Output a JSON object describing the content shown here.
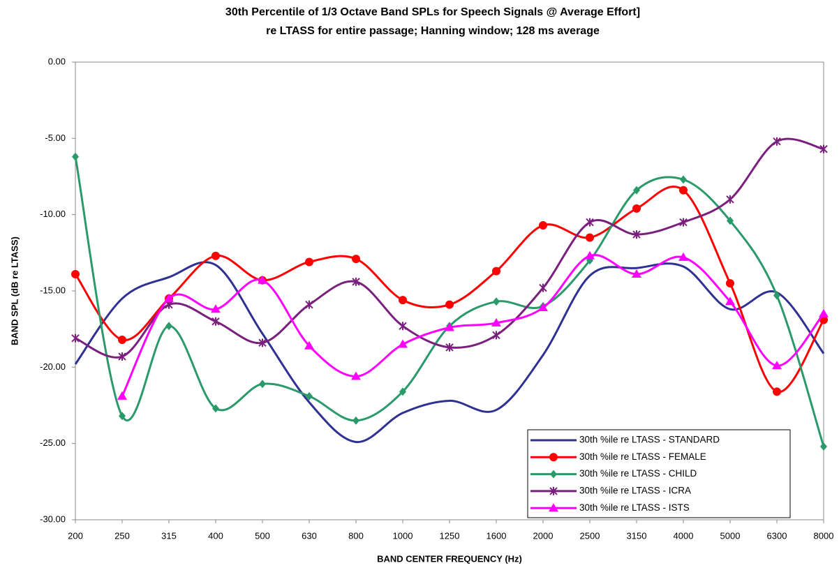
{
  "chart_data": {
    "type": "line",
    "title": "30th Percentile of 1/3 Octave Band SPLs for Speech Signals @ Average Effort]",
    "subtitle": "re LTASS for entire passage; Hanning window; 128 ms average",
    "x_label": "BAND CENTER FREQUENCY (Hz)",
    "y_label": "BAND SPL (dB re LTASS)",
    "categories": [
      "200",
      "250",
      "315",
      "400",
      "500",
      "630",
      "800",
      "1000",
      "1250",
      "1600",
      "2000",
      "2500",
      "3150",
      "4000",
      "5000",
      "6300",
      "8000"
    ],
    "ylim": [
      -30,
      0
    ],
    "yticks": [
      {
        "value": -30,
        "label": "-30.00"
      },
      {
        "value": -25,
        "label": "-25.00"
      },
      {
        "value": -20,
        "label": "-20.00"
      },
      {
        "value": -15,
        "label": "-15.00"
      },
      {
        "value": -10,
        "label": "-10.00"
      },
      {
        "value": -5,
        "label": "-5.00"
      },
      {
        "value": 0,
        "label": "0.00"
      }
    ],
    "grid": false,
    "smooth": true,
    "legend": "lower right",
    "series": [
      {
        "name": "30th %ile re LTASS - STANDARD",
        "color": "#2e3192",
        "marker": "none",
        "values": [
          -19.8,
          -15.5,
          -14.1,
          -13.3,
          -17.8,
          -22.3,
          -24.9,
          -23.0,
          -22.2,
          -22.8,
          -19.2,
          -14.0,
          -13.5,
          -13.4,
          -16.2,
          -15.1,
          -19.1
        ]
      },
      {
        "name": "30th %ile re LTASS - FEMALE",
        "color": "#ff0000",
        "marker": "circle",
        "values": [
          -13.9,
          -18.2,
          -15.5,
          -12.7,
          -14.3,
          -13.1,
          -12.9,
          -15.6,
          -15.9,
          -13.7,
          -10.7,
          -11.5,
          -9.6,
          -8.4,
          -14.5,
          -21.6,
          -16.9
        ]
      },
      {
        "name": "30th %ile re LTASS - CHILD",
        "color": "#2a9a6a",
        "marker": "diamond",
        "values": [
          -6.2,
          -23.2,
          -17.3,
          -22.7,
          -21.1,
          -21.9,
          -23.5,
          -21.6,
          -17.3,
          -15.7,
          -16.0,
          -13.0,
          -8.4,
          -7.7,
          -10.4,
          -15.3,
          -25.2
        ]
      },
      {
        "name": "30th %ile re LTASS - ICRA",
        "color": "#7b1f7f",
        "marker": "star",
        "values": [
          -18.1,
          -19.3,
          -15.9,
          -17.0,
          -18.4,
          -15.9,
          -14.4,
          -17.3,
          -18.7,
          -17.9,
          -14.8,
          -10.5,
          -11.3,
          -10.5,
          -9.0,
          -5.2,
          -5.7
        ]
      },
      {
        "name": "30th %ile re LTASS - ISTS",
        "color": "#ff00ff",
        "marker": "triangle",
        "values": [
          null,
          -21.9,
          -15.5,
          -16.2,
          -14.3,
          -18.6,
          -20.6,
          -18.5,
          -17.4,
          -17.1,
          -16.1,
          -12.7,
          -13.9,
          -12.8,
          -15.7,
          -19.9,
          -16.5
        ]
      }
    ]
  }
}
